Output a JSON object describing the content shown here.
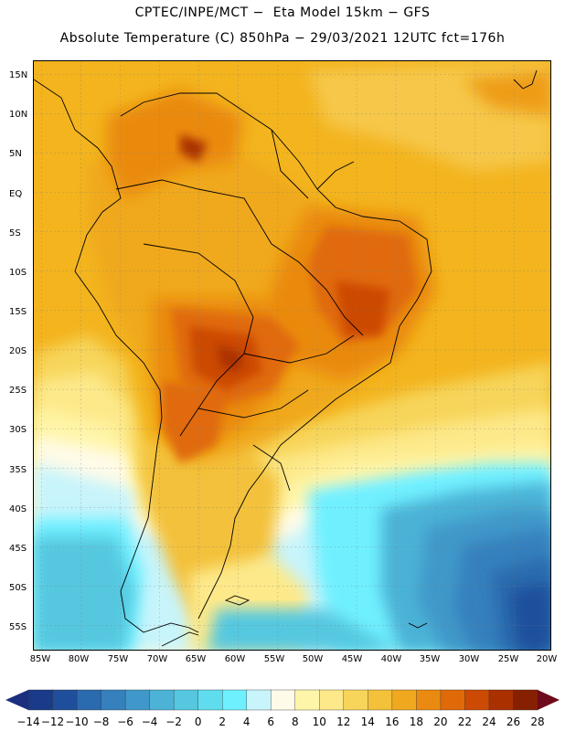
{
  "header": {
    "title_line1": "CPTEC/INPE/MCT −  Eta Model 15km − GFS",
    "title_line2": "Absolute Temperature (C) 850hPa − 29/03/2021 12UTC fct=176h"
  },
  "axes": {
    "lat_labels": [
      "15N",
      "10N",
      "5N",
      "EQ",
      "5S",
      "10S",
      "15S",
      "20S",
      "25S",
      "30S",
      "35S",
      "40S",
      "45S",
      "50S",
      "55S"
    ],
    "lon_labels": [
      "85W",
      "80W",
      "75W",
      "70W",
      "65W",
      "60W",
      "55W",
      "50W",
      "45W",
      "40W",
      "35W",
      "30W",
      "25W",
      "20W"
    ]
  },
  "legend": {
    "labels": [
      "-14",
      "-12",
      "-10",
      "-8",
      "-6",
      "-4",
      "-2",
      "0",
      "2",
      "4",
      "6",
      "8",
      "10",
      "12",
      "14",
      "16",
      "18",
      "20",
      "22",
      "24",
      "26",
      "28"
    ],
    "colors": [
      "#1a3a8a",
      "#1f4f9c",
      "#2a6aae",
      "#3580bd",
      "#3f98c9",
      "#4cb2d6",
      "#55c8e0",
      "#5fdcee",
      "#6ff0ff",
      "#c8f4fb",
      "#fffbe8",
      "#fff5a8",
      "#fde98a",
      "#f7d55a",
      "#f3c13a",
      "#f0a81e",
      "#ea8a10",
      "#e06a08",
      "#cc4a04",
      "#aa3000",
      "#862000"
    ],
    "under_color": "#1b2f7e",
    "over_color": "#6e0a1a"
  }
}
